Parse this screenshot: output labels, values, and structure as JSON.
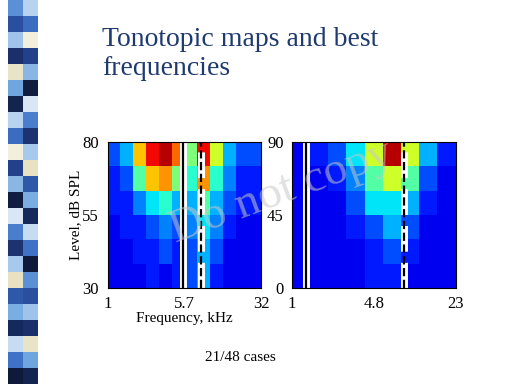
{
  "title": "Tonotopic maps and best frequencies",
  "note": "21/48 cases",
  "watermark": "Do not copy",
  "chart_data": [
    {
      "type": "heatmap",
      "x_label": "Frequency, kHz",
      "y_label": "Level, dB SPL",
      "log": "x",
      "xlim": [
        1,
        32
      ],
      "xticks": [
        1,
        5.7,
        32
      ],
      "ylim": [
        30,
        80
      ],
      "yticks": [
        30,
        55,
        80
      ],
      "crange": [
        0,
        1
      ],
      "cells": [
        [
          0.1,
          0.1,
          0.1,
          0.15,
          0.1,
          0.15,
          0.2,
          0.3,
          0.15,
          0.1,
          0.1,
          0.1
        ],
        [
          0.1,
          0.1,
          0.15,
          0.15,
          0.2,
          0.15,
          0.2,
          0.3,
          0.2,
          0.1,
          0.1,
          0.1
        ],
        [
          0.1,
          0.15,
          0.15,
          0.2,
          0.25,
          0.2,
          0.25,
          0.35,
          0.25,
          0.15,
          0.1,
          0.1
        ],
        [
          0.15,
          0.15,
          0.25,
          0.35,
          0.4,
          0.3,
          0.3,
          0.45,
          0.3,
          0.2,
          0.15,
          0.15
        ],
        [
          0.15,
          0.2,
          0.45,
          0.7,
          0.75,
          0.5,
          0.4,
          0.75,
          0.4,
          0.25,
          0.15,
          0.15
        ],
        [
          0.2,
          0.3,
          0.7,
          0.9,
          0.95,
          0.8,
          0.5,
          0.9,
          0.6,
          0.3,
          0.2,
          0.2
        ]
      ],
      "lines": [
        {
          "x": 5.5,
          "line_style": "solid"
        },
        {
          "x": 8.3,
          "line_style": "dashed"
        }
      ]
    },
    {
      "type": "heatmap",
      "log": "x",
      "xlim": [
        1,
        23
      ],
      "xticks": [
        1,
        4.8,
        23
      ],
      "ylim": [
        0,
        90
      ],
      "yticks": [
        0,
        45,
        90
      ],
      "crange": [
        0,
        1
      ],
      "cells": [
        [
          0.1,
          0.1,
          0.1,
          0.1,
          0.15,
          0.15,
          0.1,
          0.1,
          0.1
        ],
        [
          0.1,
          0.1,
          0.1,
          0.1,
          0.15,
          0.2,
          0.15,
          0.1,
          0.1
        ],
        [
          0.1,
          0.1,
          0.1,
          0.15,
          0.2,
          0.3,
          0.2,
          0.1,
          0.1
        ],
        [
          0.1,
          0.1,
          0.1,
          0.2,
          0.35,
          0.35,
          0.3,
          0.15,
          0.1
        ],
        [
          0.1,
          0.1,
          0.15,
          0.25,
          0.45,
          0.6,
          0.45,
          0.2,
          0.1
        ],
        [
          0.1,
          0.15,
          0.2,
          0.35,
          0.6,
          0.95,
          0.6,
          0.3,
          0.15
        ]
      ],
      "lines": [
        {
          "x": 1.3,
          "line_style": "solid"
        },
        {
          "x": 8.5,
          "line_style": "dashed"
        }
      ]
    }
  ]
}
